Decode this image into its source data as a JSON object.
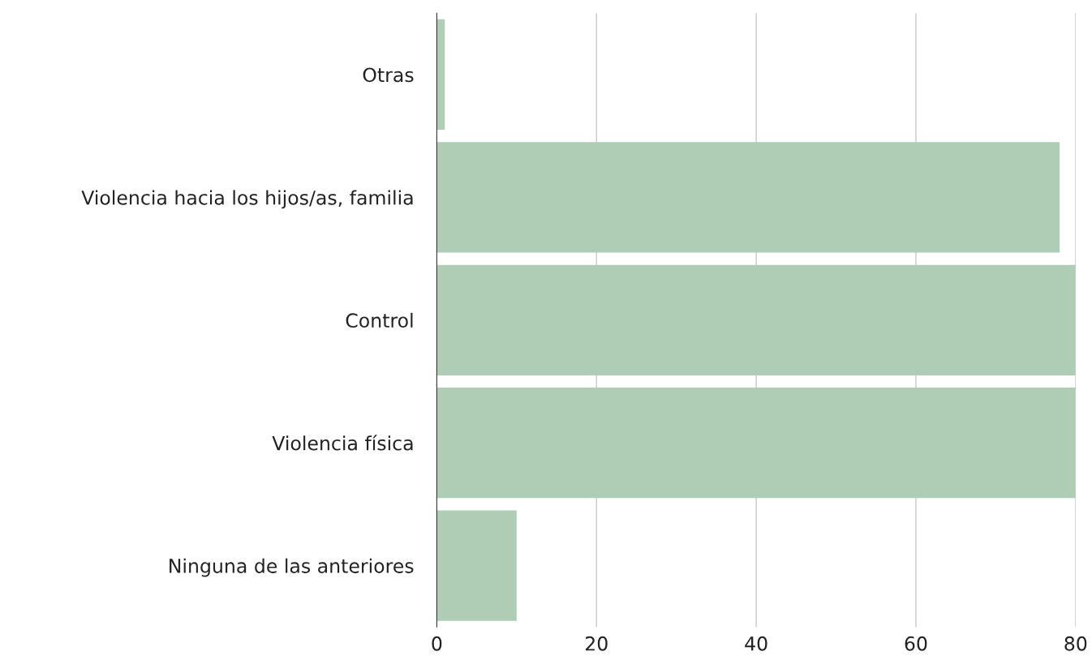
{
  "chart_data": {
    "type": "bar",
    "orientation": "horizontal",
    "categories": [
      "Otras",
      "Violencia hacia los hijos/as, familia",
      "Control",
      "Violencia física",
      "Ninguna de las anteriores"
    ],
    "values": [
      1,
      78,
      80,
      80,
      10
    ],
    "color": "#afcdb5",
    "xlim": [
      0,
      80
    ],
    "xticks": [
      0,
      20,
      40,
      60,
      80
    ],
    "grid": "x"
  }
}
